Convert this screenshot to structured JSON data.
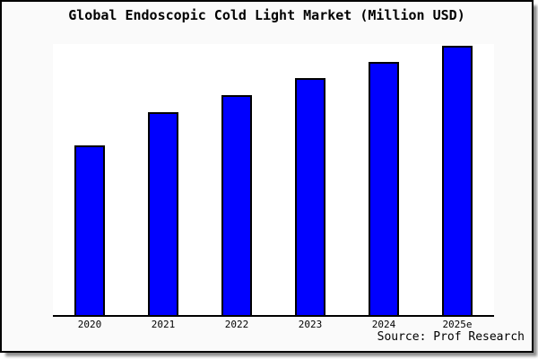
{
  "title": "Global Endoscopic Cold Light Market (Million USD)",
  "source": "Source: Prof Research",
  "colors": {
    "bar_fill": "#0000ff",
    "bar_border": "#000000",
    "axis": "#000000",
    "card_background": "#fafafa",
    "plot_background": "#ffffff",
    "card_border": "#000000"
  },
  "chart_data": {
    "type": "bar",
    "title": "Global Endoscopic Cold Light Market (Million USD)",
    "categories": [
      "2020",
      "2021",
      "2022",
      "2023",
      "2024",
      "2025e"
    ],
    "values": [
      189,
      226,
      245,
      264,
      282,
      300
    ],
    "value_note": "y-axis has no tick labels; values are relative bar heights read from pixels",
    "xlabel": "",
    "ylabel": "",
    "ylim": [
      0,
      302
    ],
    "grid": false,
    "legend": false,
    "source": "Source: Prof Research"
  }
}
